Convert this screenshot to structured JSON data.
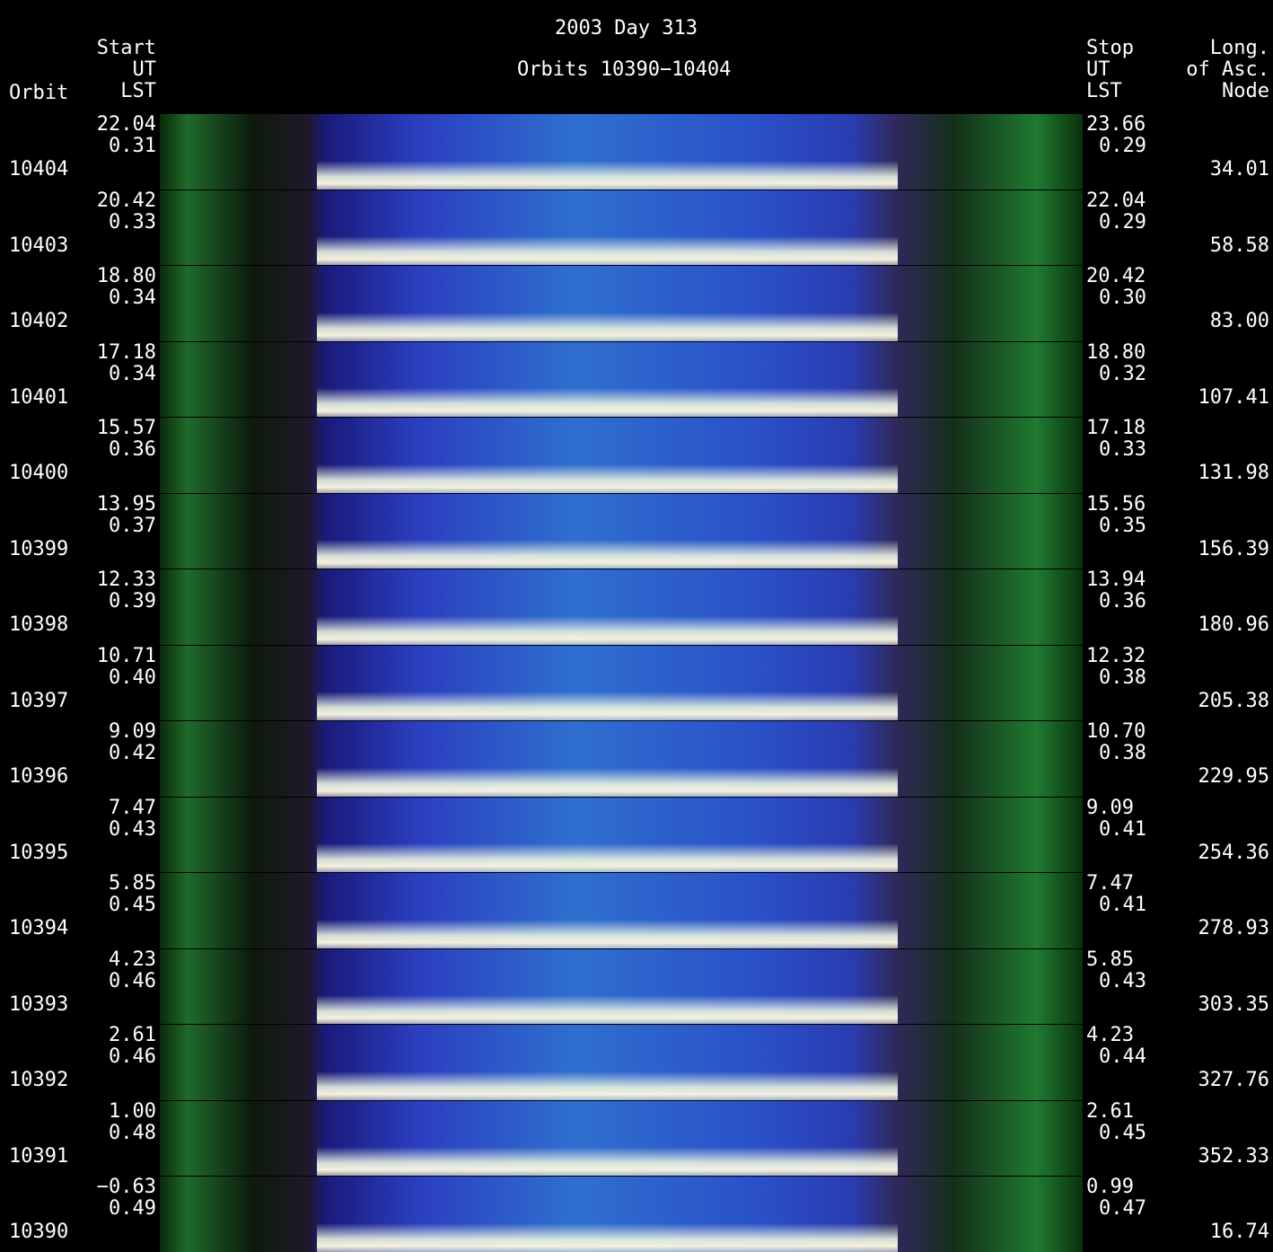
{
  "header": {
    "title": "2003 Day 313",
    "subtitle": "Orbits 10390−10404",
    "orbit": "Orbit",
    "start": [
      "Start",
      "UT",
      "LST"
    ],
    "stop": [
      "Stop",
      "UT",
      "LST"
    ],
    "long": [
      "Long.",
      "of Asc.",
      "Node"
    ]
  },
  "rows": [
    {
      "orbit": "10404",
      "start_ut": "22.04",
      "start_lst": "0.31",
      "stop_ut": "23.66",
      "stop_lst": "0.29",
      "long": "34.01"
    },
    {
      "orbit": "10403",
      "start_ut": "20.42",
      "start_lst": "0.33",
      "stop_ut": "22.04",
      "stop_lst": "0.29",
      "long": "58.58"
    },
    {
      "orbit": "10402",
      "start_ut": "18.80",
      "start_lst": "0.34",
      "stop_ut": "20.42",
      "stop_lst": "0.30",
      "long": "83.00"
    },
    {
      "orbit": "10401",
      "start_ut": "17.18",
      "start_lst": "0.34",
      "stop_ut": "18.80",
      "stop_lst": "0.32",
      "long": "107.41"
    },
    {
      "orbit": "10400",
      "start_ut": "15.57",
      "start_lst": "0.36",
      "stop_ut": "17.18",
      "stop_lst": "0.33",
      "long": "131.98"
    },
    {
      "orbit": "10399",
      "start_ut": "13.95",
      "start_lst": "0.37",
      "stop_ut": "15.56",
      "stop_lst": "0.35",
      "long": "156.39"
    },
    {
      "orbit": "10398",
      "start_ut": "12.33",
      "start_lst": "0.39",
      "stop_ut": "13.94",
      "stop_lst": "0.36",
      "long": "180.96"
    },
    {
      "orbit": "10397",
      "start_ut": "10.71",
      "start_lst": "0.40",
      "stop_ut": "12.32",
      "stop_lst": "0.38",
      "long": "205.38"
    },
    {
      "orbit": "10396",
      "start_ut": "9.09",
      "start_lst": "0.42",
      "stop_ut": "10.70",
      "stop_lst": "0.38",
      "long": "229.95"
    },
    {
      "orbit": "10395",
      "start_ut": "7.47",
      "start_lst": "0.43",
      "stop_ut": "9.09",
      "stop_lst": "0.41",
      "long": "254.36"
    },
    {
      "orbit": "10394",
      "start_ut": "5.85",
      "start_lst": "0.45",
      "stop_ut": "7.47",
      "stop_lst": "0.41",
      "long": "278.93"
    },
    {
      "orbit": "10393",
      "start_ut": "4.23",
      "start_lst": "0.46",
      "stop_ut": "5.85",
      "stop_lst": "0.43",
      "long": "303.35"
    },
    {
      "orbit": "10392",
      "start_ut": "2.61",
      "start_lst": "0.46",
      "stop_ut": "4.23",
      "stop_lst": "0.44",
      "long": "327.76"
    },
    {
      "orbit": "10391",
      "start_ut": "1.00",
      "start_lst": "0.48",
      "stop_ut": "2.61",
      "stop_lst": "0.45",
      "long": "352.33"
    },
    {
      "orbit": "10390",
      "start_ut": "−0.63",
      "start_lst": "0.49",
      "stop_ut": "0.99",
      "stop_lst": "0.47",
      "long": "16.74"
    }
  ]
}
